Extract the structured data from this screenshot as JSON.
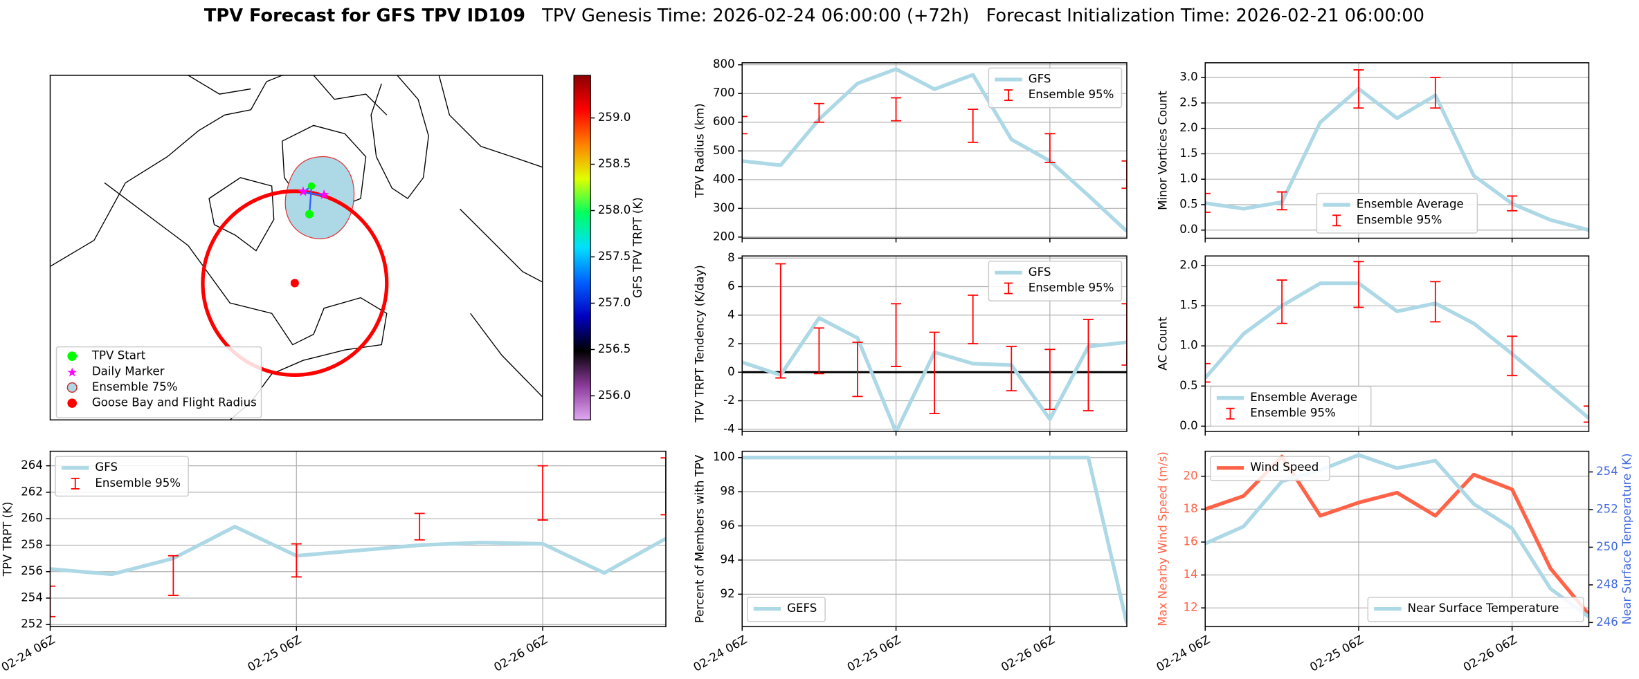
{
  "suptitle": {
    "title": "TPV Forecast for GFS TPV ID109",
    "parts": [
      "TPV Genesis Time: 2026-02-24 06:00:00 (+72h)",
      "Forecast Initialization Time: 2026-02-21 06:00:00"
    ]
  },
  "chart_data": [
    {
      "type": "map",
      "legend": [
        {
          "label": "TPV Start",
          "color": "#00ff00",
          "marker": "circle"
        },
        {
          "label": "Daily Marker",
          "color": "#ff00ff",
          "marker": "star"
        },
        {
          "label": "Ensemble 75%",
          "color": "#add8e6",
          "marker": "circle",
          "edgecolor": "#cc3333"
        },
        {
          "label": "Goose Bay and Flight Radius",
          "color": "#ff0000",
          "marker": "circle"
        }
      ],
      "colorbar": {
        "label": "GFS TPV TRPT (K)",
        "lim": [
          255.74,
          259.46
        ],
        "ticks": [
          {
            "value": 256,
            "label": "256.0"
          },
          256.5,
          {
            "value": 257,
            "label": "257.0"
          },
          257.5,
          {
            "value": 258,
            "label": "258.0"
          },
          258.5,
          {
            "value": 259,
            "label": "259.0"
          }
        ],
        "colors": [
          "#e0a8f2",
          "#8b3a9a",
          "#000000",
          "#0000c0",
          "#0060ff",
          "#00e0ff",
          "#00ff60",
          "#e0ff00",
          "#ff8000",
          "#ff0000",
          "#8b0000"
        ]
      }
    },
    {
      "type": "line",
      "ylabel": "TPV Radius (km)",
      "x": [
        "02-24 06Z",
        "02-24 12Z",
        "02-24 18Z",
        "02-25 00Z",
        "02-25 06Z",
        "02-25 12Z",
        "02-25 18Z",
        "02-26 00Z",
        "02-26 06Z",
        "02-26 12Z",
        "02-26 18Z"
      ],
      "xlim": [
        "02-24 06Z",
        "02-26 18Z"
      ],
      "xticks": [
        "02-24 06Z",
        "02-25 06Z",
        "02-26 06Z"
      ],
      "xticklabels": false,
      "ylim": [
        196,
        807
      ],
      "yticks": [
        200,
        300,
        400,
        500,
        600,
        700,
        800
      ],
      "grid": true,
      "legend": "upper right",
      "series": [
        {
          "name": "GFS",
          "color": "#add8e6",
          "values": [
            465,
            450,
            610,
            735,
            785,
            715,
            765,
            540,
            465,
            345,
            220
          ]
        },
        {
          "name": "Ensemble 95%",
          "color": "#ff0000",
          "low": [
            560,
            null,
            600,
            null,
            605,
            null,
            530,
            null,
            460,
            null,
            370
          ],
          "high": [
            620,
            null,
            665,
            null,
            685,
            null,
            645,
            null,
            560,
            null,
            465
          ]
        }
      ]
    },
    {
      "type": "line",
      "ylabel": "Minor Vortices Count",
      "x": [
        "02-24 06Z",
        "02-24 12Z",
        "02-24 18Z",
        "02-25 00Z",
        "02-25 06Z",
        "02-25 12Z",
        "02-25 18Z",
        "02-26 00Z",
        "02-26 06Z",
        "02-26 12Z",
        "02-26 18Z"
      ],
      "xlim": [
        "02-24 06Z",
        "02-26 18Z"
      ],
      "xticks": [
        "02-24 06Z",
        "02-25 06Z",
        "02-26 06Z"
      ],
      "xticklabels": false,
      "ylim": [
        -0.16,
        3.29
      ],
      "yticks": [
        {
          "value": 0,
          "label": "0.0"
        },
        0.5,
        {
          "value": 1,
          "label": "1.0"
        },
        1.5,
        {
          "value": 2,
          "label": "2.0"
        },
        2.5,
        {
          "value": 3,
          "label": "3.0"
        }
      ],
      "grid": true,
      "legend": "lower center",
      "series": [
        {
          "name": "Ensemble Average",
          "color": "#add8e6",
          "values": [
            0.53,
            0.42,
            0.55,
            2.12,
            2.78,
            2.2,
            2.65,
            1.07,
            0.52,
            0.2,
            0.0
          ]
        },
        {
          "name": "Ensemble 95%",
          "color": "#ff0000",
          "low": [
            0.35,
            null,
            0.4,
            null,
            2.4,
            null,
            2.4,
            null,
            0.38,
            null,
            null
          ],
          "high": [
            0.72,
            null,
            0.75,
            null,
            3.15,
            null,
            3.0,
            null,
            0.67,
            null,
            null
          ]
        }
      ]
    },
    {
      "type": "line",
      "ylabel": "TPV TRPT Tendency (K/day)",
      "x": [
        "02-24 06Z",
        "02-24 12Z",
        "02-24 18Z",
        "02-25 00Z",
        "02-25 06Z",
        "02-25 12Z",
        "02-25 18Z",
        "02-26 00Z",
        "02-26 06Z",
        "02-26 12Z",
        "02-26 18Z"
      ],
      "xlim": [
        "02-24 06Z",
        "02-26 18Z"
      ],
      "xticks": [
        "02-24 06Z",
        "02-25 06Z",
        "02-26 06Z"
      ],
      "xticklabels": false,
      "ylim": [
        -4.15,
        8.15
      ],
      "yticks": [
        -4,
        -2,
        0,
        2,
        4,
        6,
        8
      ],
      "grid": true,
      "legend": "upper right",
      "hline": 0,
      "series": [
        {
          "name": "GFS",
          "color": "#add8e6",
          "values": [
            0.7,
            -0.2,
            3.8,
            2.4,
            -4.2,
            1.4,
            0.6,
            0.5,
            -3.3,
            1.8,
            2.1
          ]
        },
        {
          "name": "Ensemble 95%",
          "color": "#ff0000",
          "low": [
            null,
            -0.4,
            -0.1,
            -1.7,
            0.4,
            -2.9,
            2.0,
            -1.3,
            -2.6,
            -2.7,
            0.5
          ],
          "high": [
            null,
            7.6,
            3.1,
            2.1,
            4.8,
            2.8,
            5.4,
            1.8,
            1.6,
            3.7,
            4.8
          ]
        }
      ]
    },
    {
      "type": "line",
      "ylabel": "AC Count",
      "x": [
        "02-24 06Z",
        "02-24 12Z",
        "02-24 18Z",
        "02-25 00Z",
        "02-25 06Z",
        "02-25 12Z",
        "02-25 18Z",
        "02-26 00Z",
        "02-26 06Z",
        "02-26 12Z",
        "02-26 18Z"
      ],
      "xlim": [
        "02-24 06Z",
        "02-26 18Z"
      ],
      "xticks": [
        "02-24 06Z",
        "02-25 06Z",
        "02-26 06Z"
      ],
      "xticklabels": false,
      "ylim": [
        -0.065,
        2.12
      ],
      "yticks": [
        {
          "value": 0,
          "label": "0.0"
        },
        0.5,
        {
          "value": 1,
          "label": "1.0"
        },
        1.5,
        {
          "value": 2,
          "label": "2.0"
        }
      ],
      "grid": true,
      "legend": "lower left",
      "series": [
        {
          "name": "Ensemble Average",
          "color": "#add8e6",
          "values": [
            0.6,
            1.15,
            1.5,
            1.78,
            1.78,
            1.43,
            1.53,
            1.28,
            0.9,
            0.5,
            0.1
          ]
        },
        {
          "name": "Ensemble 95%",
          "color": "#ff0000",
          "low": [
            0.55,
            null,
            1.28,
            null,
            1.48,
            null,
            1.3,
            null,
            0.63,
            null,
            0.05
          ],
          "high": [
            0.78,
            null,
            1.82,
            null,
            2.05,
            null,
            1.8,
            null,
            1.12,
            null,
            0.25
          ]
        }
      ]
    },
    {
      "type": "line",
      "ylabel": "TPV TRPT (K)",
      "x": [
        "02-24 06Z",
        "02-24 12Z",
        "02-24 18Z",
        "02-25 00Z",
        "02-25 06Z",
        "02-25 12Z",
        "02-25 18Z",
        "02-26 00Z",
        "02-26 06Z",
        "02-26 12Z",
        "02-26 18Z"
      ],
      "xlim": [
        "02-24 06Z",
        "02-26 18Z"
      ],
      "xticks": [
        "02-24 06Z",
        "02-25 06Z",
        "02-26 06Z"
      ],
      "xticklabels": true,
      "ylim": [
        251.84,
        265.1
      ],
      "yticks": [
        252,
        254,
        256,
        258,
        260,
        262,
        264
      ],
      "grid": true,
      "legend": "upper left",
      "series": [
        {
          "name": "GFS",
          "color": "#add8e6",
          "values": [
            256.2,
            255.8,
            257.0,
            259.4,
            257.2,
            257.6,
            258.0,
            258.2,
            258.1,
            255.9,
            258.5
          ]
        },
        {
          "name": "Ensemble 95%",
          "color": "#ff0000",
          "low": [
            252.6,
            null,
            254.2,
            null,
            255.6,
            null,
            258.4,
            null,
            259.9,
            null,
            260.3
          ],
          "high": [
            254.9,
            null,
            257.2,
            null,
            258.1,
            null,
            260.4,
            null,
            264.0,
            null,
            264.6
          ]
        }
      ]
    },
    {
      "type": "line",
      "ylabel": "Percent of Members with TPV",
      "x": [
        "02-24 06Z",
        "02-24 12Z",
        "02-24 18Z",
        "02-25 00Z",
        "02-25 06Z",
        "02-25 12Z",
        "02-25 18Z",
        "02-26 00Z",
        "02-26 06Z",
        "02-26 12Z",
        "02-26 18Z"
      ],
      "xlim": [
        "02-24 06Z",
        "02-26 18Z"
      ],
      "xticks": [
        "02-24 06Z",
        "02-25 06Z",
        "02-26 06Z"
      ],
      "xticklabels": true,
      "ylim": [
        90.1,
        100.37
      ],
      "yticks": [
        92,
        94,
        96,
        98,
        100
      ],
      "grid": true,
      "legend": "lower left",
      "series": [
        {
          "name": "GEFS",
          "color": "#add8e6",
          "values": [
            100,
            100,
            100,
            100,
            100,
            100,
            100,
            100,
            100,
            100,
            90.3
          ]
        }
      ]
    },
    {
      "type": "line",
      "ylabel": "Max Nearby Wind Speed (m/s)",
      "y2label": "Near Surface Temperature (K)",
      "ycolor": "#ff6347",
      "y2color": "#4169e1",
      "x": [
        "02-24 06Z",
        "02-24 12Z",
        "02-24 18Z",
        "02-25 00Z",
        "02-25 06Z",
        "02-25 12Z",
        "02-25 18Z",
        "02-26 00Z",
        "02-26 06Z",
        "02-26 12Z",
        "02-26 18Z"
      ],
      "xlim": [
        "02-24 06Z",
        "02-26 18Z"
      ],
      "xticks": [
        "02-24 06Z",
        "02-25 06Z",
        "02-26 06Z"
      ],
      "xticklabels": true,
      "ylim": [
        10.86,
        21.52
      ],
      "yticks": [
        12,
        14,
        16,
        18,
        20
      ],
      "y2lim": [
        245.78,
        255.1
      ],
      "y2ticks": [
        246,
        248,
        250,
        252,
        254
      ],
      "grid": true,
      "legend": "upper left",
      "legend2": "lower right",
      "series": [
        {
          "name": "Wind Speed",
          "color": "#ff6347",
          "values": [
            18.0,
            18.8,
            21.2,
            17.6,
            18.4,
            19.0,
            17.6,
            20.1,
            19.2,
            14.4,
            11.6
          ]
        },
        {
          "name": "Near Surface Temperature",
          "color": "#add8e6",
          "axis": "y2",
          "values": [
            250.2,
            251.1,
            253.5,
            254.1,
            254.9,
            254.2,
            254.6,
            252.3,
            251.0,
            247.8,
            246.3
          ]
        }
      ]
    }
  ]
}
